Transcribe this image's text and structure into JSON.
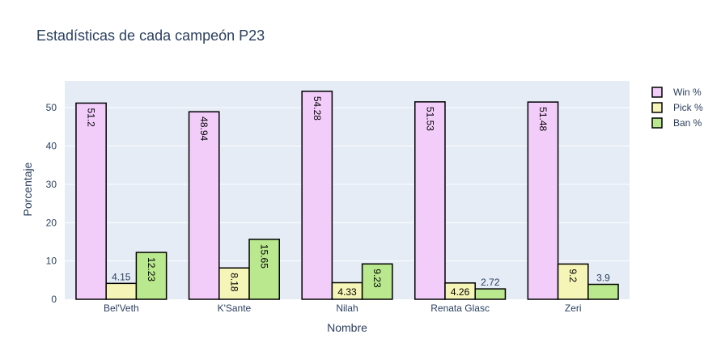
{
  "chart_data": {
    "type": "bar",
    "title": "Estadísticas de cada campeón P23",
    "xlabel": "Nombre",
    "ylabel": "Porcentaje",
    "categories": [
      "Bel'Veth",
      "K'Sante",
      "Nilah",
      "Renata Glasc",
      "Zeri"
    ],
    "ylim": [
      0,
      57
    ],
    "yticks": [
      0,
      10,
      20,
      30,
      40,
      50
    ],
    "grid": true,
    "legend_position": "top-right",
    "series": [
      {
        "name": "Win %",
        "color": "#f2cdfa",
        "values": [
          51.2,
          48.94,
          54.28,
          51.53,
          51.48
        ]
      },
      {
        "name": "Pick %",
        "color": "#f5f5b8",
        "values": [
          4.15,
          8.18,
          4.33,
          4.26,
          9.2
        ]
      },
      {
        "name": "Ban %",
        "color": "#b9e88e",
        "values": [
          12.23,
          15.65,
          9.23,
          2.72,
          3.9
        ]
      }
    ],
    "colors": {
      "plot_bg": "#e5ecf6",
      "grid": "#ffffff",
      "text": "#2a3f5f",
      "bar_outline": "#000000"
    }
  }
}
